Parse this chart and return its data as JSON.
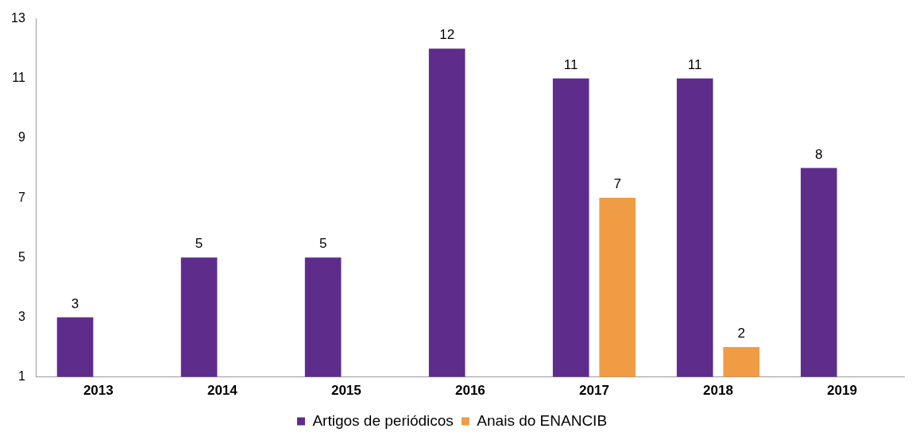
{
  "chart_data": {
    "type": "bar",
    "categories": [
      "2013",
      "2014",
      "2015",
      "2016",
      "2017",
      "2018",
      "2019"
    ],
    "series": [
      {
        "name": "Artigos de periódicos",
        "color": "#5e2d8c",
        "values": [
          3,
          5,
          5,
          12,
          11,
          11,
          8
        ]
      },
      {
        "name": "Anais do ENANCIB",
        "color": "#f09c44",
        "values": [
          null,
          null,
          null,
          null,
          7,
          2,
          null
        ]
      }
    ],
    "ylim": [
      1,
      13
    ],
    "yticks": [
      1,
      3,
      5,
      7,
      9,
      11,
      13
    ],
    "grid": false,
    "legend": "bottom",
    "data_labels": true
  }
}
